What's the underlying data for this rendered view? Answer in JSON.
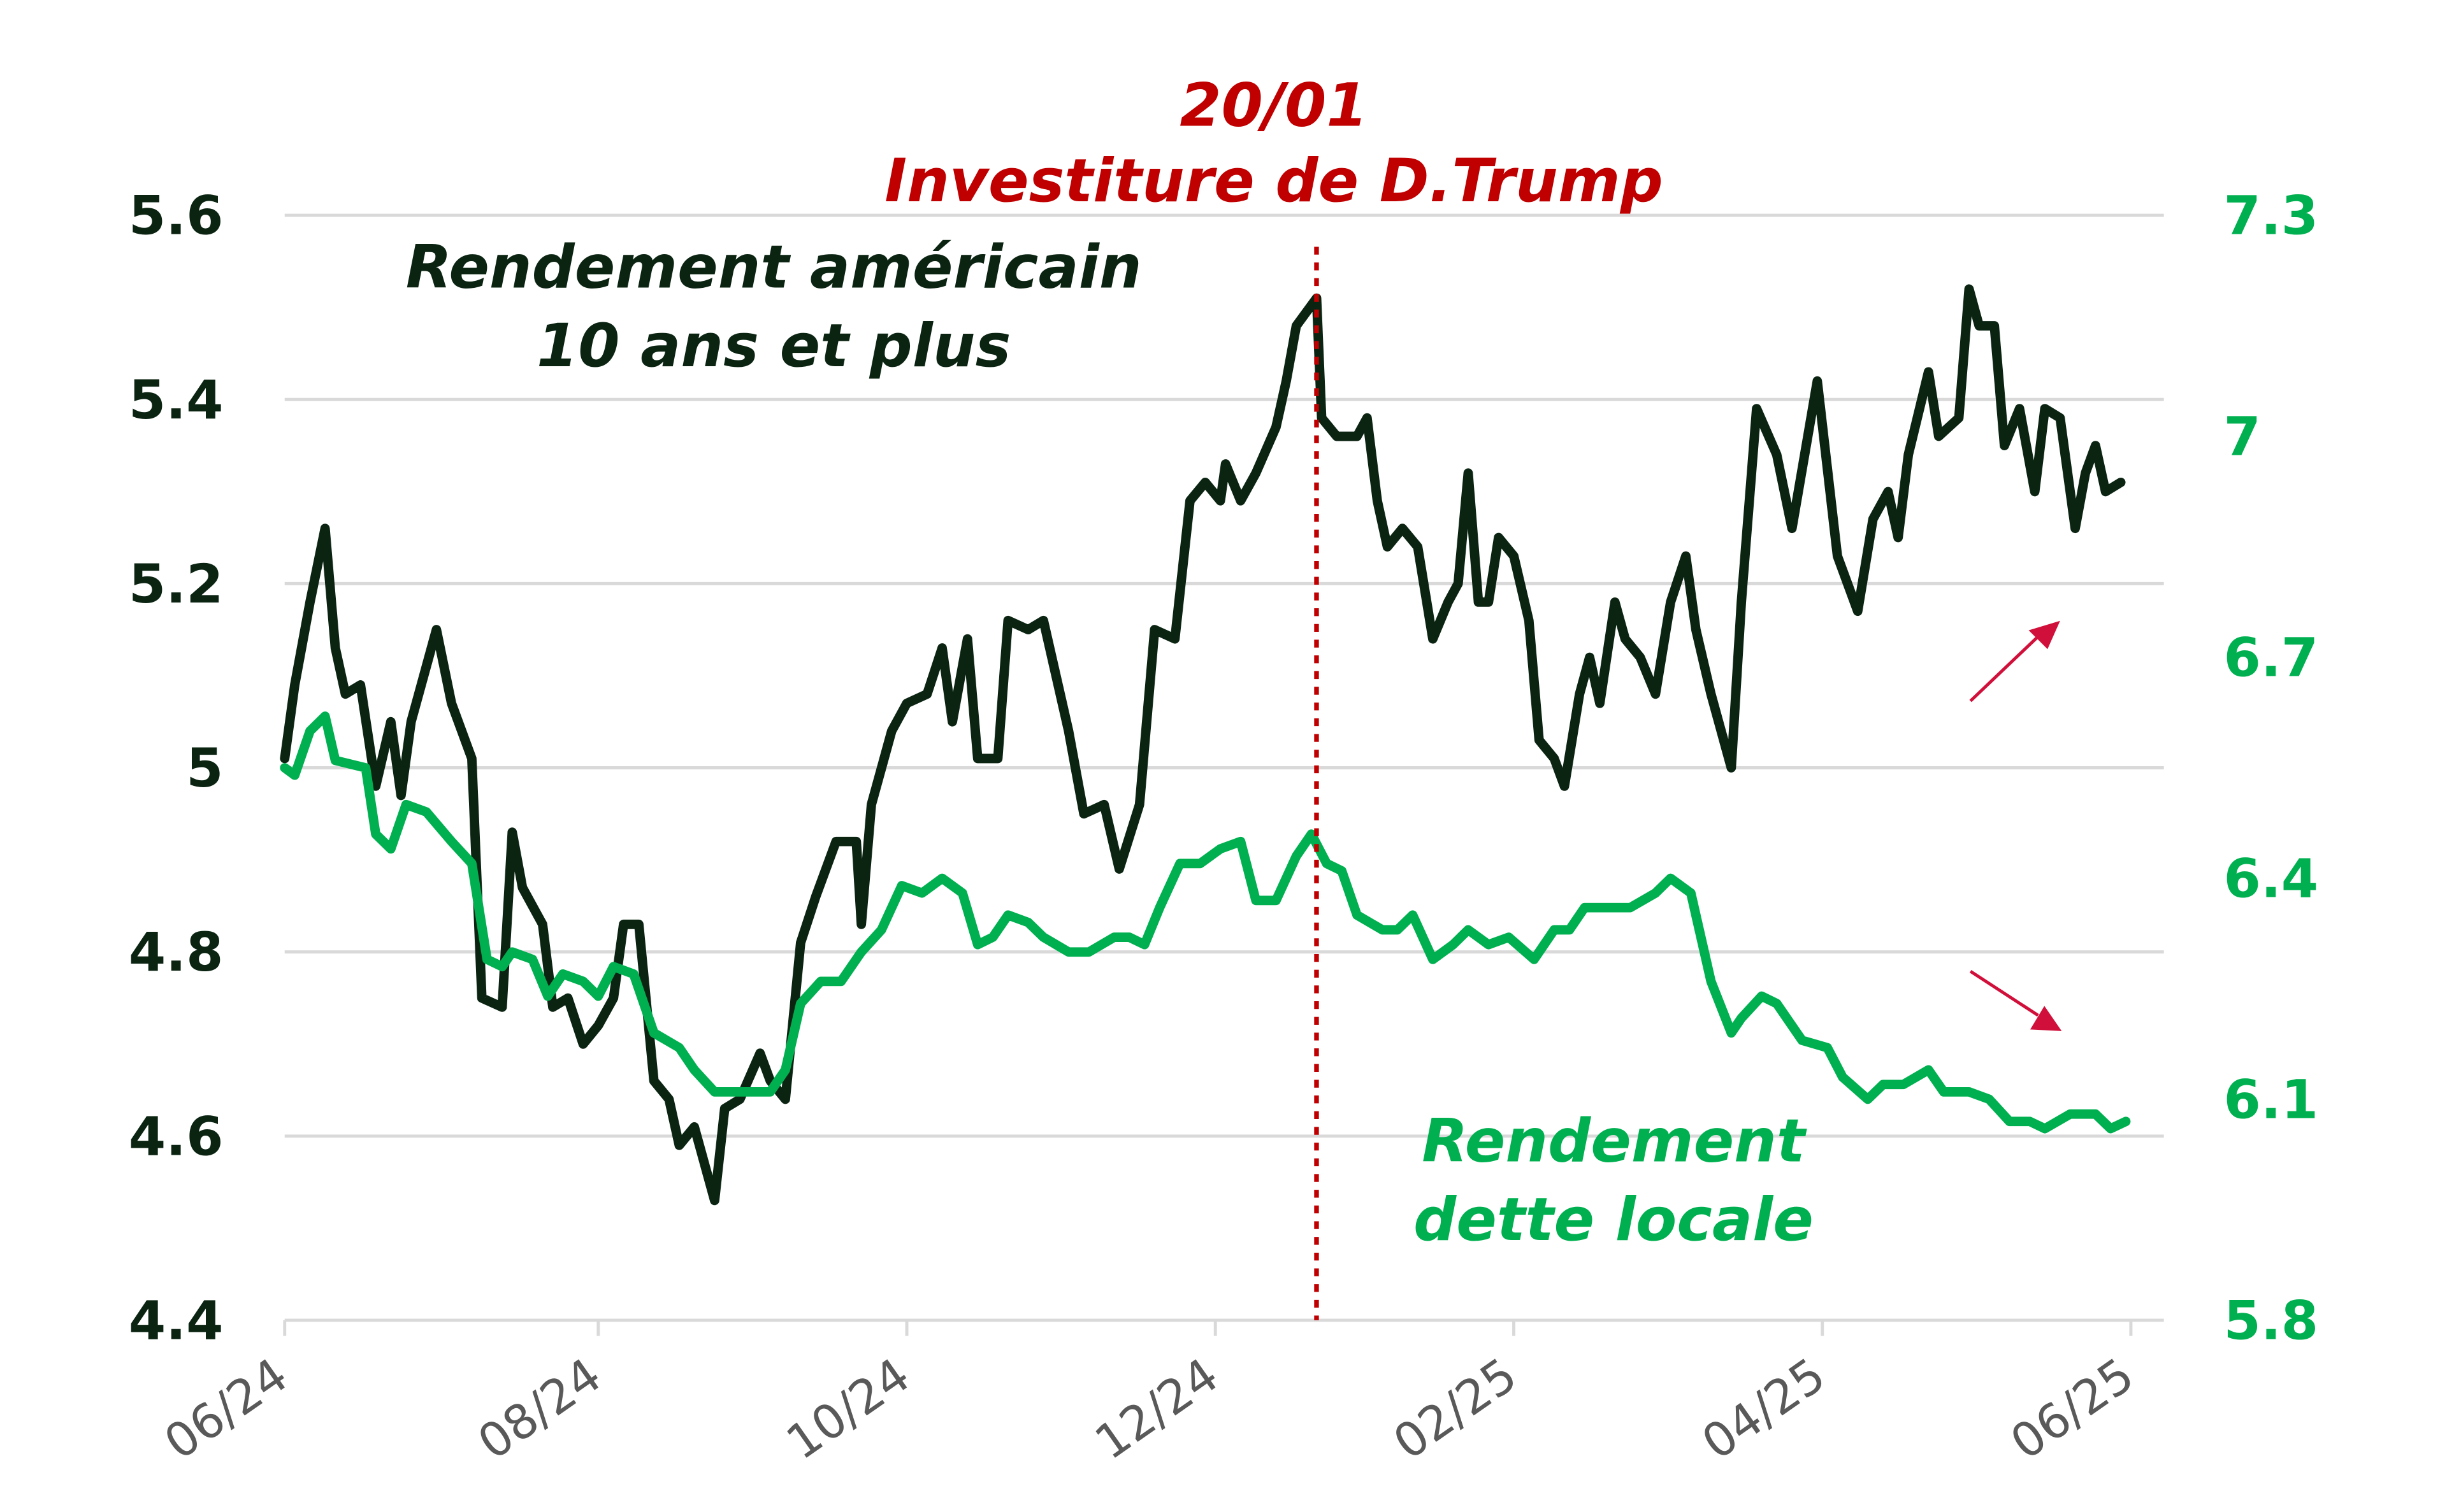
{
  "chart_data": {
    "type": "line",
    "title": "",
    "x_ticks": [
      "06/24",
      "08/24",
      "10/24",
      "12/24",
      "02/25",
      "04/25",
      "06/25"
    ],
    "x_tick_dates": [
      "2024-06-30",
      "2024-08-31",
      "2024-10-31",
      "2024-12-31",
      "2025-02-28",
      "2025-04-30",
      "2025-06-30"
    ],
    "xlim": [
      "2024-06-30",
      "2025-06-30"
    ],
    "y_left": {
      "ticks": [
        "4.4",
        "4.6",
        "4.8",
        "5",
        "5.2",
        "5.4",
        "5.6"
      ],
      "ylim": [
        4.4,
        5.6
      ],
      "color": "#0b2412"
    },
    "y_right": {
      "ticks": [
        "5.8",
        "6.1",
        "6.4",
        "6.7",
        "7",
        "7.3"
      ],
      "ylim": [
        5.8,
        7.3
      ],
      "color": "#00b050"
    },
    "grid": true,
    "event": {
      "date": "2025-01-20",
      "label_line1": "20/01",
      "label_line2": "Investiture de D.Trump",
      "color": "#c00000"
    },
    "series": [
      {
        "name": "Rendement américain 10 ans et plus",
        "label_line1": "Rendement américain",
        "label_line2": "10 ans et plus",
        "axis": "left",
        "color": "#0b2412",
        "trend": "up",
        "x": [
          "2024-06-30",
          "2024-07-02",
          "2024-07-05",
          "2024-07-08",
          "2024-07-10",
          "2024-07-12",
          "2024-07-15",
          "2024-07-18",
          "2024-07-21",
          "2024-07-23",
          "2024-07-25",
          "2024-07-30",
          "2024-08-02",
          "2024-08-06",
          "2024-08-08",
          "2024-08-12",
          "2024-08-14",
          "2024-08-16",
          "2024-08-20",
          "2024-08-22",
          "2024-08-25",
          "2024-08-28",
          "2024-08-31",
          "2024-09-03",
          "2024-09-05",
          "2024-09-08",
          "2024-09-11",
          "2024-09-14",
          "2024-09-16",
          "2024-09-19",
          "2024-09-23",
          "2024-09-25",
          "2024-09-28",
          "2024-10-02",
          "2024-10-04",
          "2024-10-07",
          "2024-10-10",
          "2024-10-13",
          "2024-10-17",
          "2024-10-21",
          "2024-10-22",
          "2024-10-24",
          "2024-10-28",
          "2024-10-31",
          "2024-11-04",
          "2024-11-07",
          "2024-11-09",
          "2024-11-12",
          "2024-11-14",
          "2024-11-18",
          "2024-11-20",
          "2024-11-24",
          "2024-11-27",
          "2024-12-02",
          "2024-12-05",
          "2024-12-09",
          "2024-12-12",
          "2024-12-16",
          "2024-12-19",
          "2024-12-23",
          "2024-12-26",
          "2024-12-29",
          "2025-01-01",
          "2025-01-02",
          "2025-01-05",
          "2025-01-08",
          "2025-01-12",
          "2025-01-14",
          "2025-01-16",
          "2025-01-20",
          "2025-01-21",
          "2025-01-24",
          "2025-01-28",
          "2025-01-30",
          "2025-02-01",
          "2025-02-03",
          "2025-02-06",
          "2025-02-09",
          "2025-02-12",
          "2025-02-15",
          "2025-02-17",
          "2025-02-19",
          "2025-02-21",
          "2025-02-23",
          "2025-02-25",
          "2025-02-28",
          "2025-03-03",
          "2025-03-05",
          "2025-03-08",
          "2025-03-10",
          "2025-03-13",
          "2025-03-15",
          "2025-03-17",
          "2025-03-20",
          "2025-03-22",
          "2025-03-25",
          "2025-03-28",
          "2025-03-31",
          "2025-04-03",
          "2025-04-05",
          "2025-04-08",
          "2025-04-12",
          "2025-04-14",
          "2025-04-17",
          "2025-04-21",
          "2025-04-24",
          "2025-04-29",
          "2025-05-03",
          "2025-05-07",
          "2025-05-10",
          "2025-05-13",
          "2025-05-15",
          "2025-05-17",
          "2025-05-21",
          "2025-05-23",
          "2025-05-27",
          "2025-05-29",
          "2025-05-31",
          "2025-06-03",
          "2025-06-05",
          "2025-06-08",
          "2025-06-11",
          "2025-06-13",
          "2025-06-16",
          "2025-06-19",
          "2025-06-21",
          "2025-06-23",
          "2025-06-25",
          "2025-06-28"
        ],
        "values": [
          5.01,
          5.09,
          5.18,
          5.26,
          5.13,
          5.08,
          5.09,
          4.98,
          5.05,
          4.97,
          5.05,
          5.15,
          5.07,
          5.01,
          4.75,
          4.74,
          4.93,
          4.87,
          4.83,
          4.74,
          4.75,
          4.7,
          4.72,
          4.75,
          4.83,
          4.83,
          4.66,
          4.64,
          4.59,
          4.61,
          4.53,
          4.63,
          4.64,
          4.69,
          4.66,
          4.64,
          4.81,
          4.86,
          4.92,
          4.92,
          4.83,
          4.96,
          5.04,
          5.07,
          5.08,
          5.13,
          5.05,
          5.14,
          5.01,
          5.01,
          5.16,
          5.15,
          5.16,
          5.04,
          4.95,
          4.96,
          4.89,
          4.96,
          5.15,
          5.14,
          5.29,
          5.31,
          5.29,
          5.33,
          5.29,
          5.32,
          5.37,
          5.42,
          5.48,
          5.51,
          5.38,
          5.36,
          5.36,
          5.38,
          5.29,
          5.24,
          5.26,
          5.24,
          5.14,
          5.18,
          5.2,
          5.32,
          5.18,
          5.18,
          5.25,
          5.23,
          5.16,
          5.03,
          5.01,
          4.98,
          5.08,
          5.12,
          5.07,
          5.18,
          5.14,
          5.12,
          5.08,
          5.18,
          5.23,
          5.15,
          5.08,
          5.0,
          5.18,
          5.39,
          5.34,
          5.26,
          5.42,
          5.23,
          5.17,
          5.27,
          5.3,
          5.25,
          5.34,
          5.43,
          5.36,
          5.38,
          5.52,
          5.48,
          5.48,
          5.35,
          5.39,
          5.3,
          5.39,
          5.38,
          5.26,
          5.32,
          5.35,
          5.3,
          5.31
        ]
      },
      {
        "name": "Rendement dette locale",
        "label_line1": "Rendement",
        "label_line2": "dette locale",
        "axis": "right",
        "color": "#00b050",
        "trend": "down",
        "x": [
          "2024-06-30",
          "2024-07-02",
          "2024-07-05",
          "2024-07-08",
          "2024-07-10",
          "2024-07-16",
          "2024-07-18",
          "2024-07-21",
          "2024-07-24",
          "2024-07-28",
          "2024-08-02",
          "2024-08-06",
          "2024-08-09",
          "2024-08-12",
          "2024-08-14",
          "2024-08-18",
          "2024-08-21",
          "2024-08-24",
          "2024-08-28",
          "2024-08-31",
          "2024-09-03",
          "2024-09-07",
          "2024-09-11",
          "2024-09-16",
          "2024-09-19",
          "2024-09-23",
          "2024-09-28",
          "2024-10-04",
          "2024-10-07",
          "2024-10-10",
          "2024-10-14",
          "2024-10-18",
          "2024-10-22",
          "2024-10-26",
          "2024-10-30",
          "2024-11-03",
          "2024-11-07",
          "2024-11-11",
          "2024-11-14",
          "2024-11-17",
          "2024-11-20",
          "2024-11-24",
          "2024-11-27",
          "2024-12-02",
          "2024-12-06",
          "2024-12-11",
          "2024-12-14",
          "2024-12-17",
          "2024-12-20",
          "2024-12-24",
          "2024-12-28",
          "2025-01-01",
          "2025-01-05",
          "2025-01-08",
          "2025-01-12",
          "2025-01-16",
          "2025-01-19",
          "2025-01-22",
          "2025-01-25",
          "2025-01-28",
          "2025-02-02",
          "2025-02-05",
          "2025-02-08",
          "2025-02-12",
          "2025-02-16",
          "2025-02-19",
          "2025-02-23",
          "2025-02-27",
          "2025-03-04",
          "2025-03-08",
          "2025-03-11",
          "2025-03-14",
          "2025-03-19",
          "2025-03-23",
          "2025-03-28",
          "2025-03-31",
          "2025-04-04",
          "2025-04-08",
          "2025-04-12",
          "2025-04-14",
          "2025-04-18",
          "2025-04-21",
          "2025-04-26",
          "2025-05-01",
          "2025-05-04",
          "2025-05-09",
          "2025-05-12",
          "2025-05-16",
          "2025-05-21",
          "2025-05-24",
          "2025-05-29",
          "2025-06-02",
          "2025-06-06",
          "2025-06-10",
          "2025-06-13",
          "2025-06-18",
          "2025-06-23",
          "2025-06-26",
          "2025-06-29"
        ],
        "values": [
          6.55,
          6.54,
          6.6,
          6.62,
          6.56,
          6.55,
          6.46,
          6.44,
          6.5,
          6.49,
          6.45,
          6.42,
          6.29,
          6.28,
          6.3,
          6.29,
          6.24,
          6.27,
          6.26,
          6.24,
          6.28,
          6.27,
          6.19,
          6.17,
          6.14,
          6.11,
          6.11,
          6.11,
          6.14,
          6.23,
          6.26,
          6.26,
          6.3,
          6.33,
          6.39,
          6.38,
          6.4,
          6.38,
          6.31,
          6.32,
          6.35,
          6.34,
          6.32,
          6.3,
          6.3,
          6.32,
          6.32,
          6.31,
          6.36,
          6.42,
          6.42,
          6.44,
          6.45,
          6.37,
          6.37,
          6.43,
          6.46,
          6.42,
          6.41,
          6.35,
          6.33,
          6.33,
          6.35,
          6.29,
          6.31,
          6.33,
          6.31,
          6.32,
          6.29,
          6.33,
          6.33,
          6.36,
          6.36,
          6.36,
          6.38,
          6.4,
          6.38,
          6.26,
          6.19,
          6.21,
          6.24,
          6.23,
          6.18,
          6.17,
          6.13,
          6.1,
          6.12,
          6.12,
          6.14,
          6.11,
          6.11,
          6.1,
          6.07,
          6.07,
          6.06,
          6.08,
          6.08,
          6.06,
          6.07
        ]
      }
    ],
    "trend_arrow_color": "#d0103a",
    "gridline_color": "#d9d9d9"
  }
}
